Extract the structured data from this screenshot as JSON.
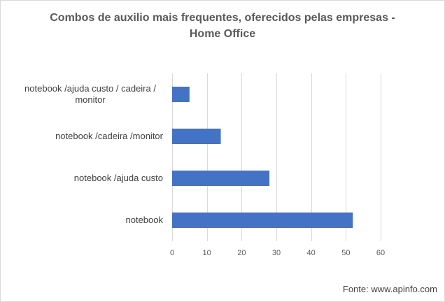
{
  "chart_data": {
    "type": "bar",
    "orientation": "horizontal",
    "title_lines": [
      "Combos de auxilio mais frequentes, oferecidos pelas empresas -",
      "Home Office"
    ],
    "categories": [
      [
        "notebook /ajuda custo / cadeira /",
        "monitor"
      ],
      [
        "notebook /cadeira /monitor"
      ],
      [
        "notebook /ajuda custo"
      ],
      [
        "notebook"
      ]
    ],
    "values": [
      5,
      14,
      28,
      52
    ],
    "xlim": [
      0,
      60
    ],
    "xticks": [
      0,
      10,
      20,
      30,
      40,
      50,
      60
    ],
    "grid": true,
    "bar_color": "#4472c4",
    "grid_color": "#d9d9d9",
    "legend": "none"
  },
  "source": "Fonte: www.apinfo.com"
}
